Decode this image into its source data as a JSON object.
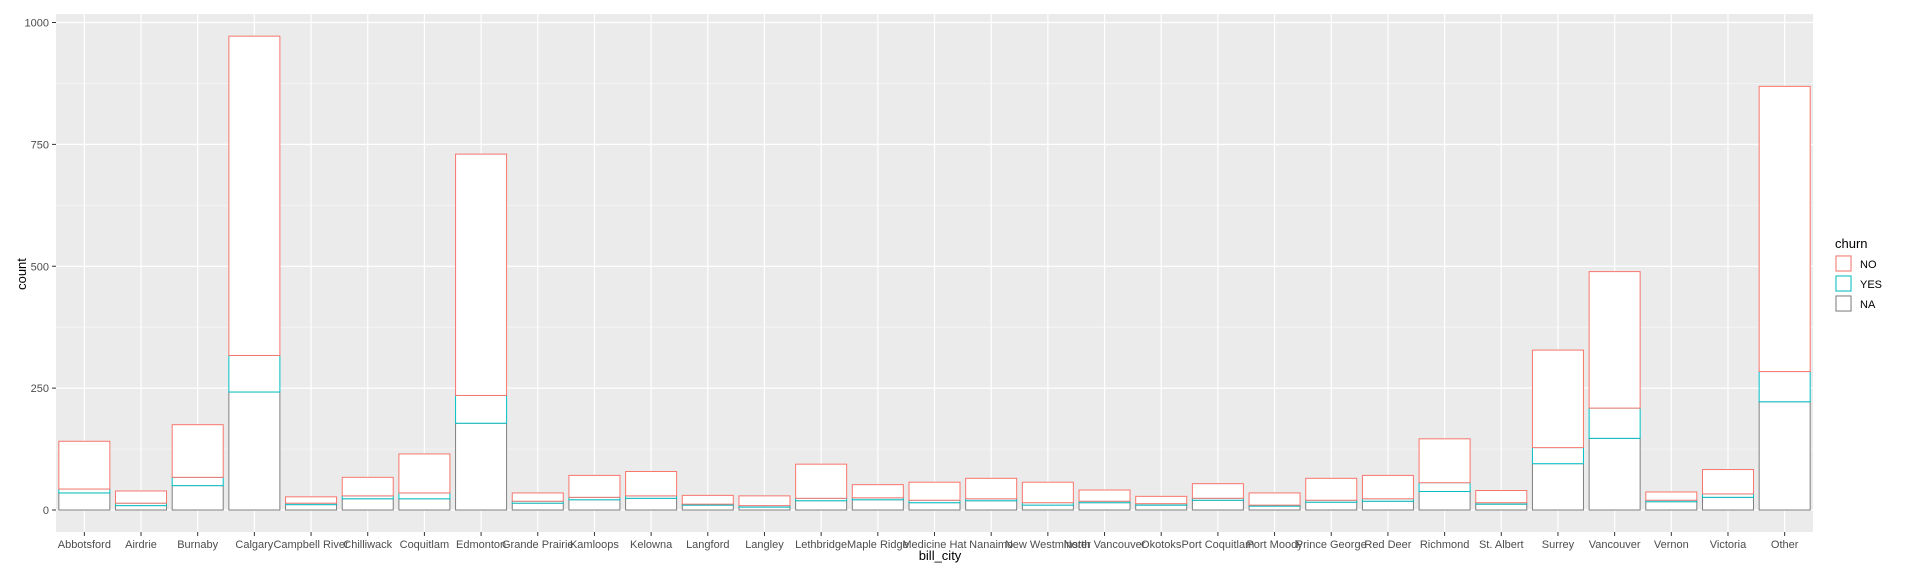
{
  "chart_data": {
    "type": "bar",
    "stacked": true,
    "xlabel": "bill_city",
    "ylabel": "count",
    "ylim": [
      0,
      1000
    ],
    "yticks": [
      0,
      250,
      500,
      750,
      1000
    ],
    "grid": true,
    "legend_position": "right",
    "categories": [
      "Abbotsford",
      "Airdrie",
      "Burnaby",
      "Calgary",
      "Campbell River",
      "Chilliwack",
      "Coquitlam",
      "Edmonton",
      "Grande Prairie",
      "Kamloops",
      "Kelowna",
      "Langford",
      "Langley",
      "Lethbridge",
      "Maple Ridge",
      "Medicine Hat",
      "Nanaimo",
      "New Westminster",
      "North Vancouver",
      "Okotoks",
      "Port Coquitlam",
      "Port Moody",
      "Prince George",
      "Red Deer",
      "Richmond",
      "St. Albert",
      "Surrey",
      "Vancouver",
      "Vernon",
      "Victoria",
      "Other"
    ],
    "series": [
      {
        "name": "NO",
        "color": "#F8766D",
        "values": [
          98,
          25,
          108,
          655,
          13,
          38,
          80,
          495,
          17,
          45,
          50,
          18,
          20,
          70,
          27,
          37,
          42,
          42,
          23,
          15,
          30,
          25,
          45,
          48,
          90,
          25,
          200,
          280,
          17,
          50,
          585
        ]
      },
      {
        "name": "YES",
        "color": "#00BFC4",
        "values": [
          8,
          5,
          17,
          75,
          3,
          6,
          12,
          57,
          4,
          5,
          5,
          2,
          3,
          5,
          4,
          5,
          4,
          5,
          3,
          3,
          4,
          2,
          4,
          5,
          18,
          3,
          33,
          62,
          3,
          7,
          62
        ]
      },
      {
        "name": "NA",
        "color": "#7F7F7F",
        "values": [
          35,
          9,
          50,
          242,
          11,
          23,
          23,
          178,
          14,
          21,
          24,
          10,
          6,
          19,
          21,
          15,
          19,
          10,
          15,
          10,
          20,
          8,
          16,
          18,
          38,
          12,
          95,
          147,
          17,
          26,
          222
        ]
      }
    ]
  },
  "legend": {
    "title": "churn",
    "items": [
      "NO",
      "YES",
      "NA"
    ]
  }
}
